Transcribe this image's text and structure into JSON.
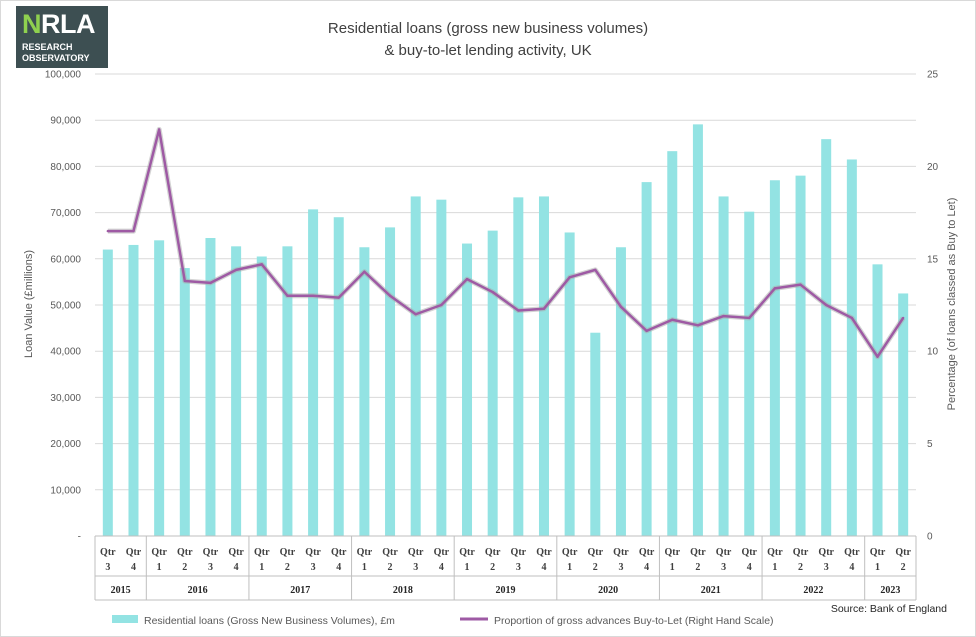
{
  "logo": {
    "brand_prefix": "N",
    "brand_rest": "RLA",
    "line1": "RESEARCH",
    "line2": "OBSERVATORY"
  },
  "chart_data": {
    "type": "bar",
    "title_line1": "Residential loans (gross new business volumes)",
    "title_line2": "& buy-to-let lending activity, UK",
    "ylabel": "Loan Value (£millions)",
    "y2label": "Percentage (of loans classed as Buy to Let)",
    "ylim": [
      0,
      100000
    ],
    "y2lim": [
      0,
      25
    ],
    "y_ticks": [
      {
        "value": 100000,
        "label": "100,000"
      },
      {
        "value": 90000,
        "label": "90,000"
      },
      {
        "value": 80000,
        "label": "80,000"
      },
      {
        "value": 70000,
        "label": "70,000"
      },
      {
        "value": 60000,
        "label": "60,000"
      },
      {
        "value": 50000,
        "label": "50,000"
      },
      {
        "value": 40000,
        "label": "40,000"
      },
      {
        "value": 30000,
        "label": "30,000"
      },
      {
        "value": 20000,
        "label": "20,000"
      },
      {
        "value": 10000,
        "label": "10,000"
      },
      {
        "value": 0,
        "label": "-"
      }
    ],
    "y2_ticks": [
      {
        "value": 25,
        "label": "25"
      },
      {
        "value": 20,
        "label": "20"
      },
      {
        "value": 15,
        "label": "15"
      },
      {
        "value": 10,
        "label": "10"
      },
      {
        "value": 5,
        "label": "5"
      },
      {
        "value": 0,
        "label": "0"
      }
    ],
    "grid": true,
    "legend_position": "bottom",
    "categories": [
      {
        "qtr": "Qtr",
        "num": "3"
      },
      {
        "qtr": "Qtr",
        "num": "4"
      },
      {
        "qtr": "Qtr",
        "num": "1"
      },
      {
        "qtr": "Qtr",
        "num": "2"
      },
      {
        "qtr": "Qtr",
        "num": "3"
      },
      {
        "qtr": "Qtr",
        "num": "4"
      },
      {
        "qtr": "Qtr",
        "num": "1"
      },
      {
        "qtr": "Qtr",
        "num": "2"
      },
      {
        "qtr": "Qtr",
        "num": "3"
      },
      {
        "qtr": "Qtr",
        "num": "4"
      },
      {
        "qtr": "Qtr",
        "num": "1"
      },
      {
        "qtr": "Qtr",
        "num": "2"
      },
      {
        "qtr": "Qtr",
        "num": "3"
      },
      {
        "qtr": "Qtr",
        "num": "4"
      },
      {
        "qtr": "Qtr",
        "num": "1"
      },
      {
        "qtr": "Qtr",
        "num": "2"
      },
      {
        "qtr": "Qtr",
        "num": "3"
      },
      {
        "qtr": "Qtr",
        "num": "4"
      },
      {
        "qtr": "Qtr",
        "num": "1"
      },
      {
        "qtr": "Qtr",
        "num": "2"
      },
      {
        "qtr": "Qtr",
        "num": "3"
      },
      {
        "qtr": "Qtr",
        "num": "4"
      },
      {
        "qtr": "Qtr",
        "num": "1"
      },
      {
        "qtr": "Qtr",
        "num": "2"
      },
      {
        "qtr": "Qtr",
        "num": "3"
      },
      {
        "qtr": "Qtr",
        "num": "4"
      },
      {
        "qtr": "Qtr",
        "num": "1"
      },
      {
        "qtr": "Qtr",
        "num": "2"
      },
      {
        "qtr": "Qtr",
        "num": "3"
      },
      {
        "qtr": "Qtr",
        "num": "4"
      },
      {
        "qtr": "Qtr",
        "num": "1"
      },
      {
        "qtr": "Qtr",
        "num": "2"
      }
    ],
    "years": [
      {
        "label": "2015",
        "count": 2
      },
      {
        "label": "2016",
        "count": 4
      },
      {
        "label": "2017",
        "count": 4
      },
      {
        "label": "2018",
        "count": 4
      },
      {
        "label": "2019",
        "count": 4
      },
      {
        "label": "2020",
        "count": 4
      },
      {
        "label": "2021",
        "count": 4
      },
      {
        "label": "2022",
        "count": 4
      },
      {
        "label": "2023",
        "count": 2
      }
    ],
    "series": [
      {
        "name": "Residential loans (Gross New Business Volumes), £m",
        "type": "bar",
        "axis": "left",
        "color": "#93e3e3",
        "values": [
          62000,
          63000,
          64000,
          58000,
          64500,
          62700,
          60500,
          62700,
          70700,
          69000,
          62500,
          66800,
          73500,
          72800,
          63300,
          66100,
          73300,
          73500,
          65700,
          44000,
          62500,
          76600,
          83300,
          89100,
          73500,
          70200,
          77000,
          78000,
          85900,
          81500,
          58800,
          52500
        ]
      },
      {
        "name": "Proportion of gross advances Buy-to-Let (Right Hand Scale)",
        "type": "line",
        "axis": "right",
        "color": "#9e5aa4",
        "values": [
          16.5,
          16.5,
          22.0,
          13.8,
          13.7,
          14.4,
          14.7,
          13.0,
          13.0,
          12.9,
          14.3,
          13.0,
          12.0,
          12.5,
          13.9,
          13.2,
          12.2,
          12.3,
          14.0,
          14.4,
          12.4,
          11.1,
          11.7,
          11.4,
          11.9,
          11.8,
          13.4,
          13.6,
          12.5,
          11.8,
          9.7,
          11.8
        ]
      }
    ],
    "source": "Source: Bank of England"
  }
}
